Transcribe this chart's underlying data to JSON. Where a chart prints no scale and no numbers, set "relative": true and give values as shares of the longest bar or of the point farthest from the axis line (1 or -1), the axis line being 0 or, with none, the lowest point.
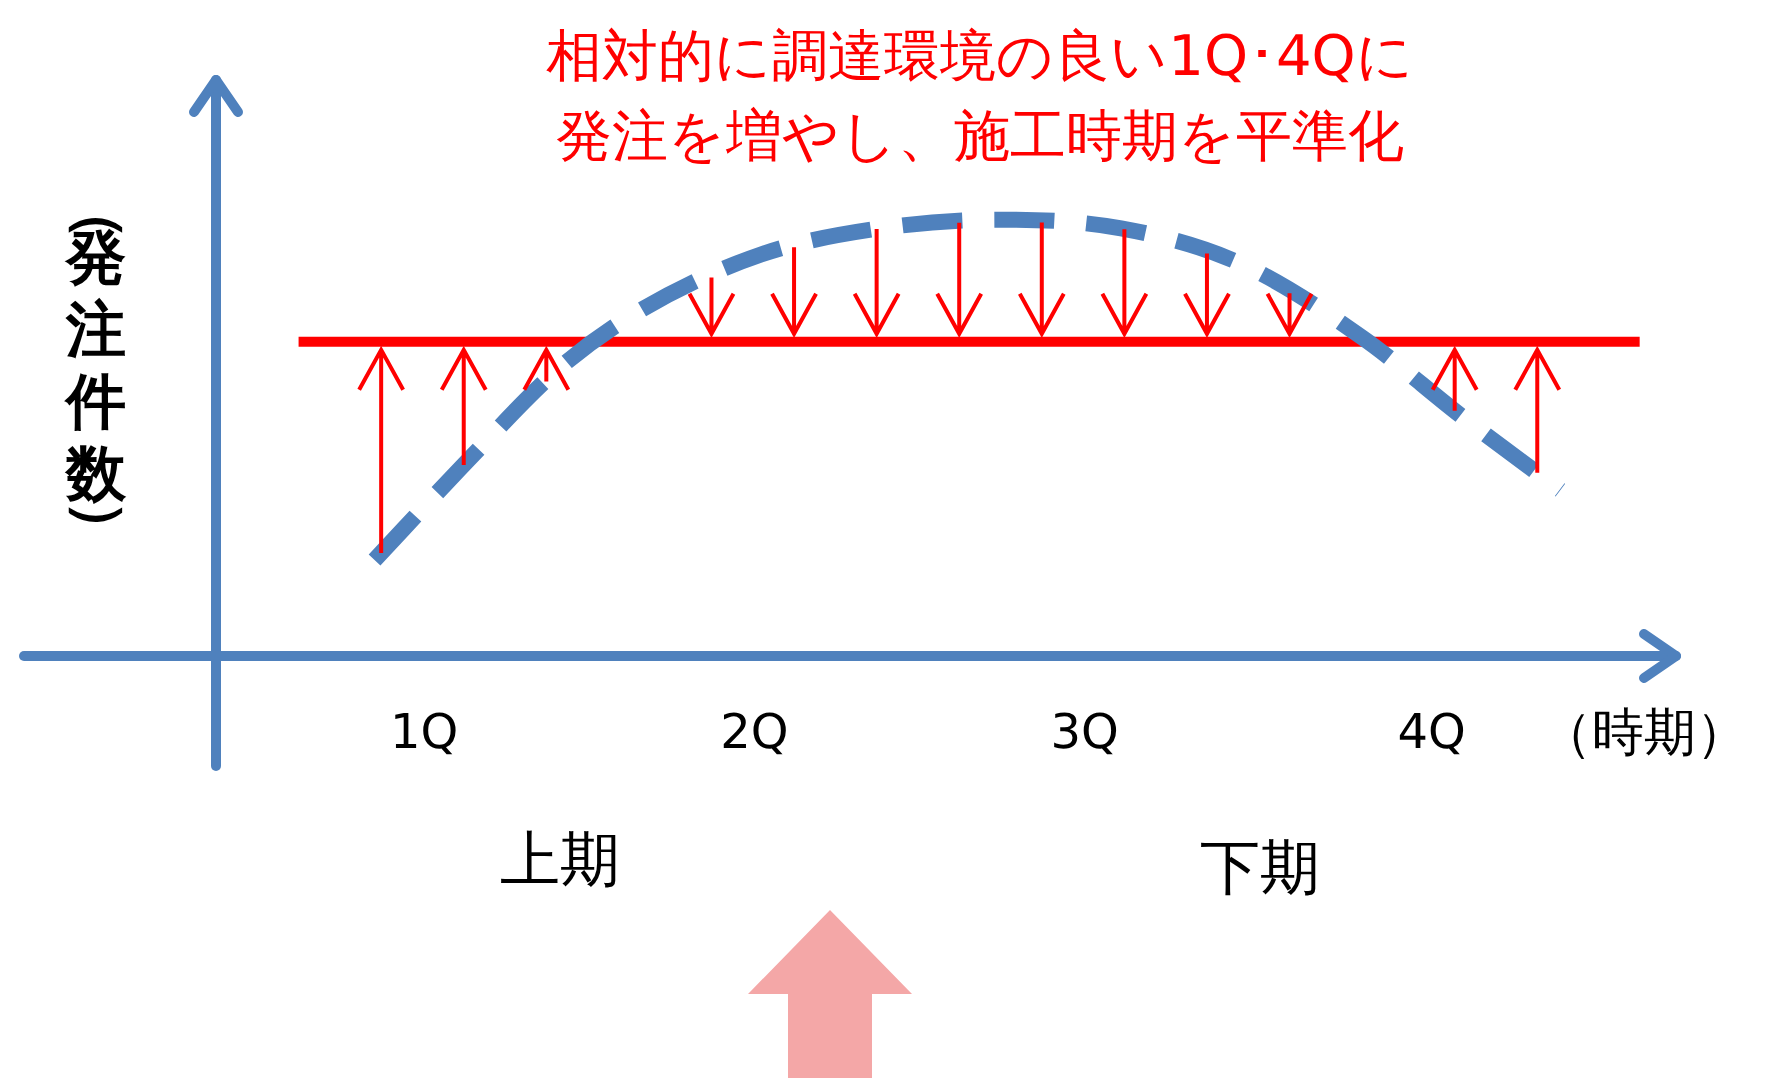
{
  "chart_data": {
    "type": "line",
    "relative": true,
    "title": "相対的に調達環境の良い1Q･4Qに発注を増やし、施工時期を平準化",
    "ylabel": "（発注件数）",
    "xlabel": "（時期）",
    "xlim": [
      0.37,
      4.79
    ],
    "xticks": [
      {
        "value": 1,
        "label": "1Q"
      },
      {
        "value": 2,
        "label": "2Q"
      },
      {
        "value": 3,
        "label": "3Q"
      },
      {
        "value": 4.05,
        "label": "4Q"
      }
    ],
    "series": [
      {
        "type": "line",
        "line_style": "dashed",
        "color": "#4f81bd",
        "x": [
          0.85,
          1.11,
          1.41,
          1.65,
          2.02,
          2.38,
          2.75,
          3.11,
          3.47,
          3.84,
          4.14,
          4.44
        ],
        "values": [
          0.22,
          0.43,
          0.66,
          0.79,
          0.92,
          0.98,
          1,
          0.98,
          0.9,
          0.73,
          0.55,
          0.38
        ]
      },
      {
        "type": "line",
        "line_style": "solid",
        "color": "#ff0000",
        "x": [
          0.62,
          4.68
        ],
        "values": [
          0.72,
          0.72
        ]
      }
    ],
    "ref_lines": [
      {
        "axis": "y",
        "value": 0,
        "color": "#4f81bd"
      },
      {
        "axis": "x",
        "value": 0.37,
        "color": "#4f81bd"
      }
    ],
    "marker": "none",
    "grid": false,
    "legend": false,
    "annotations": [
      "上期",
      "下期"
    ]
  }
}
